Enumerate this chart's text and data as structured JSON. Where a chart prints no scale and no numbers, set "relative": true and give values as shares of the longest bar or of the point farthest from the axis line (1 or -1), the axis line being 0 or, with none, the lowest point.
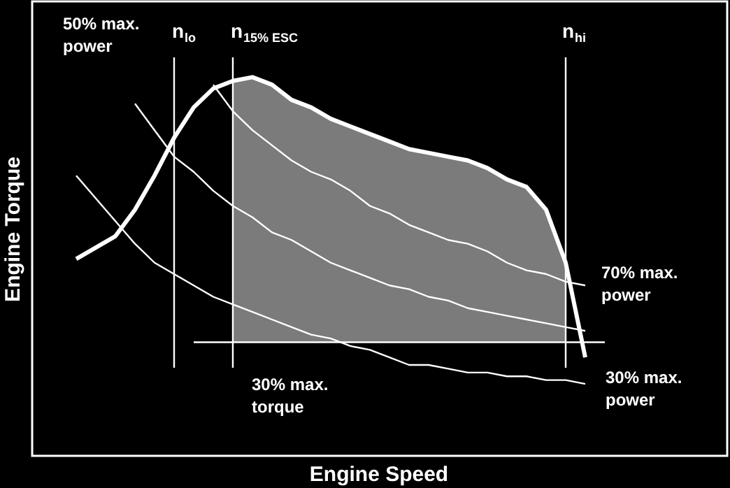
{
  "chart_data": {
    "type": "line",
    "relative": true,
    "xlabel": "Engine Speed",
    "ylabel": "Engine Torque",
    "categories": [
      null,
      null,
      null,
      null,
      null,
      null,
      null,
      null,
      null,
      null,
      null,
      null,
      null,
      null,
      null,
      null,
      null,
      null,
      null,
      null,
      null,
      null,
      null,
      null,
      null,
      null,
      null,
      null,
      null,
      null,
      null,
      null,
      null,
      null,
      null,
      null
    ],
    "series": [
      {
        "color": "#ffffff",
        "values": [
          null,
          null,
          0.52,
          0.55,
          0.58,
          0.65,
          0.74,
          0.84,
          0.92,
          0.97,
          0.99,
          1.0,
          0.98,
          0.94,
          0.92,
          0.89,
          0.87,
          0.85,
          0.83,
          0.81,
          0.8,
          0.79,
          0.78,
          0.76,
          0.73,
          0.71,
          0.65,
          0.51,
          0.26,
          null,
          null,
          null,
          null,
          null,
          null,
          null
        ],
        "lower": [
          null,
          null,
          null,
          null,
          null,
          null,
          null,
          null,
          null,
          null,
          0.3,
          0.3,
          0.3,
          0.3,
          0.3,
          0.3,
          0.3,
          0.3,
          0.3,
          0.3,
          0.3,
          0.3,
          0.3,
          0.3,
          0.3,
          0.3,
          0.3,
          0.3,
          null,
          null,
          null,
          null,
          null,
          null,
          null,
          null
        ],
        "upper": [
          null,
          null,
          null,
          null,
          null,
          null,
          null,
          null,
          null,
          null,
          0.99,
          1.0,
          0.98,
          0.94,
          0.92,
          0.89,
          0.87,
          0.85,
          0.83,
          0.81,
          0.8,
          0.79,
          0.78,
          0.76,
          0.73,
          0.71,
          0.65,
          0.51,
          null,
          null,
          null,
          null,
          null,
          null,
          null,
          null
        ]
      },
      {
        "color": "#ffffff",
        "values": [
          null,
          null,
          0.74,
          0.68,
          0.62,
          0.56,
          0.51,
          0.48,
          0.45,
          0.42,
          0.4,
          0.38,
          0.36,
          0.34,
          0.32,
          0.31,
          0.29,
          0.28,
          0.26,
          0.24,
          0.24,
          0.23,
          0.22,
          0.22,
          0.21,
          0.21,
          0.2,
          0.2,
          0.19,
          null,
          null,
          null,
          null,
          null,
          null,
          null
        ]
      },
      {
        "color": "#ffffff",
        "values": [
          null,
          null,
          null,
          null,
          null,
          0.93,
          0.86,
          0.79,
          0.75,
          0.7,
          0.66,
          0.63,
          0.59,
          0.57,
          0.54,
          0.51,
          0.49,
          0.47,
          0.45,
          0.44,
          0.42,
          0.41,
          0.39,
          0.38,
          0.37,
          0.36,
          0.35,
          0.34,
          0.33,
          null,
          null,
          null,
          null,
          null,
          null,
          null
        ]
      },
      {
        "color": "#ffffff",
        "values": [
          null,
          null,
          null,
          null,
          null,
          null,
          null,
          null,
          null,
          0.98,
          0.91,
          0.86,
          0.82,
          0.78,
          0.75,
          0.73,
          0.7,
          0.66,
          0.64,
          0.61,
          0.59,
          0.57,
          0.56,
          0.54,
          0.51,
          0.49,
          0.48,
          0.46,
          0.45,
          null,
          null,
          null,
          null,
          null,
          null,
          null
        ]
      },
      {
        "color": "#ffffff",
        "values": [
          null,
          null,
          null,
          null,
          null,
          null,
          null,
          null,
          0.3,
          0.3,
          0.3,
          0.3,
          0.3,
          0.3,
          0.3,
          0.3,
          0.3,
          0.3,
          0.3,
          0.3,
          0.3,
          0.3,
          0.3,
          0.3,
          0.3,
          0.3,
          0.3,
          0.3,
          0.3,
          0.3,
          null,
          null,
          null,
          null,
          null,
          null
        ]
      }
    ],
    "annotations": [
      "n$_{lo}$",
      "n$_{15% ESC}$",
      "n$_{hi}$",
      "50% max. power",
      "70% max. power",
      "30% max. power",
      "30% max. torque"
    ]
  }
}
